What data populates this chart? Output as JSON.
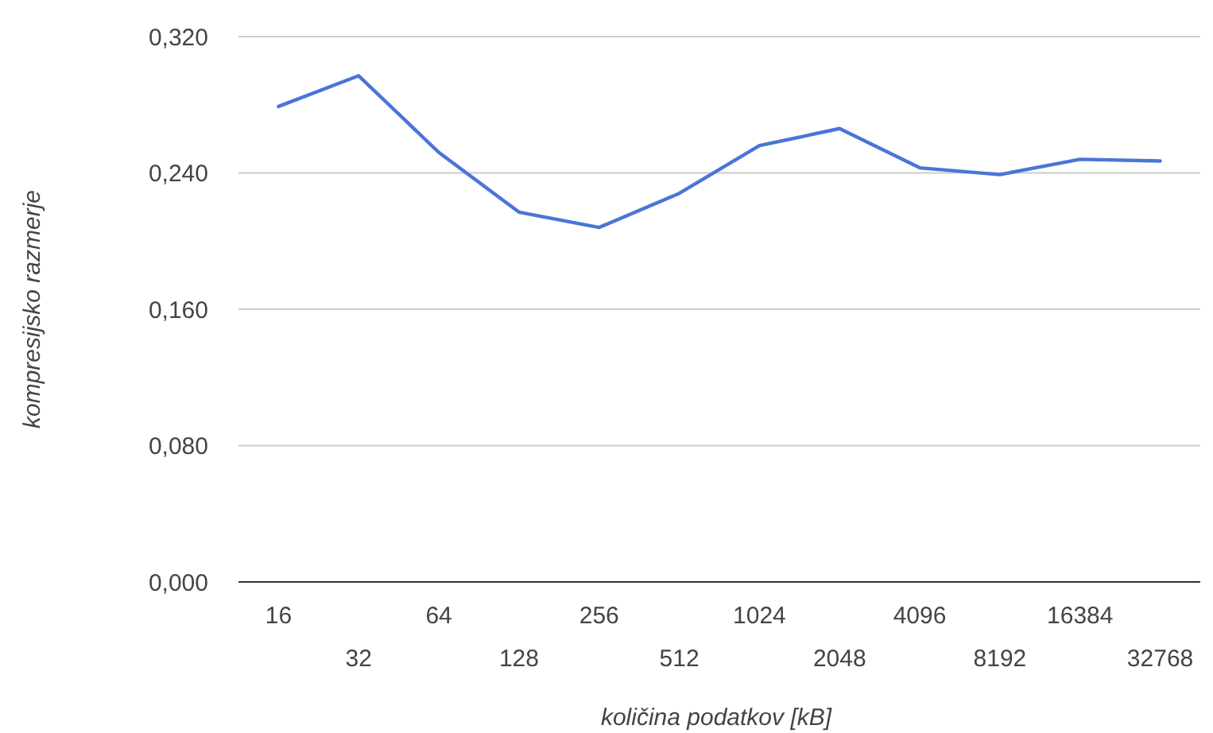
{
  "chart_data": {
    "type": "line",
    "xlabel": "količina podatkov [kB]",
    "ylabel": "kompresijsko razmerje",
    "categories": [
      "16",
      "32",
      "64",
      "128",
      "256",
      "512",
      "1024",
      "2048",
      "4096",
      "8192",
      "16384",
      "32768"
    ],
    "series": [
      {
        "color": "#4a74d9",
        "values": [
          0.279,
          0.297,
          0.252,
          0.217,
          0.208,
          0.228,
          0.256,
          0.266,
          0.243,
          0.239,
          0.248,
          0.247
        ]
      }
    ],
    "ylim": [
      0,
      0.32
    ],
    "yticks": [
      {
        "value": 0,
        "label": "0,000"
      },
      {
        "value": 0.08,
        "label": "0,080"
      },
      {
        "value": 0.16,
        "label": "0,160"
      },
      {
        "value": 0.24,
        "label": "0,240"
      },
      {
        "value": 0.32,
        "label": "0,320"
      }
    ],
    "grid": "y",
    "marker": "none",
    "line_style": "solid"
  }
}
